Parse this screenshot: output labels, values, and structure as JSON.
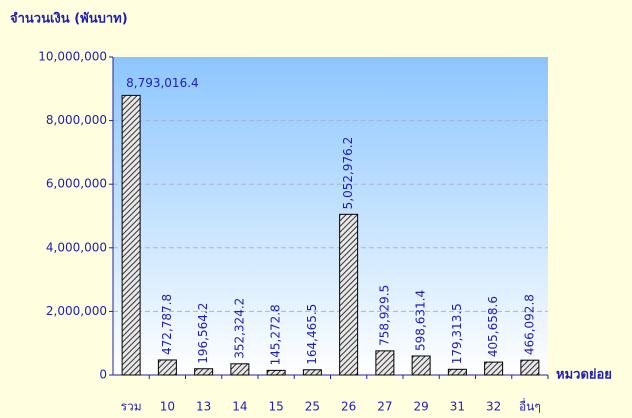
{
  "chart_data": {
    "type": "bar",
    "y_label": "จำนวนเงิน (พันบาท)",
    "x_label": "หมวดย่อย",
    "categories": [
      "รวม",
      "10",
      "13",
      "14",
      "15",
      "25",
      "26",
      "27",
      "29",
      "31",
      "32",
      "อื่นๆ"
    ],
    "values": [
      8793016.4,
      472787.8,
      196564.2,
      352324.2,
      145272.8,
      164465.5,
      5052976.2,
      758929.5,
      598631.4,
      179313.5,
      405658.6,
      466092.8
    ],
    "value_labels": [
      "8,793,016.4",
      "472,787.8",
      "196,564.2",
      "352,324.2",
      "145,272.8",
      "164,465.5",
      "5,052,976.2",
      "758,929.5",
      "598,631.4",
      "179,313.5",
      "405,658.6",
      "466,092.8"
    ],
    "ylim": [
      0,
      10000000
    ],
    "yticks": [
      0,
      {
        "value": 2000000,
        "label": "2,000,000"
      },
      {
        "value": 4000000,
        "label": "4,000,000"
      },
      {
        "value": 6000000,
        "label": "6,000,000"
      },
      {
        "value": 8000000,
        "label": "8,000,000"
      },
      {
        "value": 10000000,
        "label": "10,000,000"
      }
    ],
    "grid": true
  }
}
